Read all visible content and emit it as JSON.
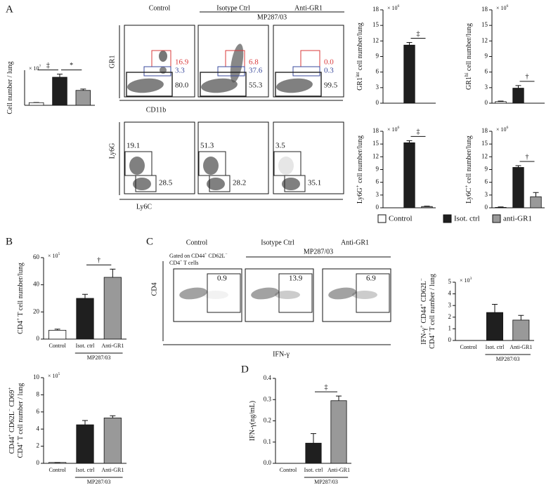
{
  "panel_labels": [
    "A",
    "B",
    "C",
    "D"
  ],
  "flow_a": {
    "columns": [
      "Control",
      "Isotype Ctrl",
      "Anti-GR1"
    ],
    "group": "MP287/03",
    "gr1": {
      "ylabel": "GR1",
      "xlabel": "CD11b",
      "gates": [
        [
          "16.9",
          "3.3",
          "80.0"
        ],
        [
          "6.8",
          "37.6",
          "55.3"
        ],
        [
          "0.0",
          "0.3",
          "99.5"
        ]
      ],
      "gate_colors": [
        "#d9383a",
        "#3a4a9c",
        "#222222"
      ]
    },
    "ly6": {
      "ylabel": "Ly6G",
      "xlabel": "Ly6C",
      "gates": [
        [
          "19.1",
          "28.5"
        ],
        [
          "51.3",
          "28.2"
        ],
        [
          "3.5",
          "35.1"
        ]
      ]
    }
  },
  "flow_c": {
    "columns": [
      "Control",
      "Isotype Ctrl",
      "Anti-GR1"
    ],
    "group": "MP287/03",
    "note": [
      [
        "Gated on CD44",
        "+",
        " CD62L",
        "−"
      ],
      [
        "CD4",
        "+",
        " T cells"
      ]
    ],
    "ylabel": "CD4",
    "xlabel": "IFN-γ",
    "gates": [
      "0.9",
      "13.9",
      "6.9"
    ]
  },
  "legend": [
    {
      "name": "Control",
      "color": "#ffffff"
    },
    {
      "name": "Isot. ctrl",
      "color": "#1f1f1f"
    },
    {
      "name": "anti-GR1",
      "color": "#999999"
    }
  ],
  "chart_data": [
    {
      "type": "bar",
      "ylabel": [
        [
          "Cell number / lung"
        ]
      ],
      "unit_label": [
        "× 10",
        "7"
      ],
      "categories": [
        null,
        null,
        null
      ],
      "values": [
        0.6,
        6.4,
        3.4
      ],
      "errors": [
        0.05,
        0.7,
        0.3
      ],
      "colors": [
        "#ffffff",
        "#1f1f1f",
        "#999999"
      ],
      "ylim": [
        0,
        8
      ],
      "annotations": [
        "‡",
        "*"
      ]
    },
    {
      "type": "bar",
      "ylabel": [
        [
          "GR1",
          "int",
          " cell number/lung"
        ]
      ],
      "unit_label": [
        "× 10",
        "6"
      ],
      "categories": [
        null,
        null,
        null
      ],
      "values": [
        0,
        11.2,
        0
      ],
      "errors": [
        0,
        0.5,
        0
      ],
      "colors": [
        "#ffffff",
        "#1f1f1f",
        "#999999"
      ],
      "ylim": [
        0,
        18
      ],
      "yticks": [
        0,
        3,
        6,
        9,
        12,
        15,
        18
      ],
      "annotations": [
        "‡"
      ]
    },
    {
      "type": "bar",
      "ylabel": [
        [
          "GR1",
          "hi",
          " cell number/lung"
        ]
      ],
      "unit_label": [
        "× 10",
        "6"
      ],
      "categories": [
        null,
        null,
        null
      ],
      "values": [
        0.3,
        2.9,
        0
      ],
      "errors": [
        0.1,
        0.5,
        0
      ],
      "colors": [
        "#ffffff",
        "#1f1f1f",
        "#999999"
      ],
      "ylim": [
        0,
        18
      ],
      "yticks": [
        0,
        3,
        6,
        9,
        12,
        15,
        18
      ],
      "annotations": [
        "†"
      ]
    },
    {
      "type": "bar",
      "ylabel": [
        [
          "Ly6G",
          "+",
          " cell number/lung"
        ]
      ],
      "unit_label": [
        "× 10",
        "6"
      ],
      "categories": [
        null,
        null,
        null
      ],
      "values": [
        0,
        15.3,
        0.3
      ],
      "errors": [
        0,
        0.5,
        0.1
      ],
      "colors": [
        "#ffffff",
        "#1f1f1f",
        "#999999"
      ],
      "ylim": [
        0,
        18
      ],
      "yticks": [
        0,
        3,
        6,
        9,
        12,
        15,
        18
      ],
      "annotations": [
        "‡"
      ]
    },
    {
      "type": "bar",
      "ylabel": [
        [
          "Ly6C",
          "+",
          " cell number/lung"
        ]
      ],
      "unit_label": [
        "× 10",
        "6"
      ],
      "categories": [
        null,
        null,
        null
      ],
      "values": [
        0.1,
        9.5,
        2.6
      ],
      "errors": [
        0.1,
        0.4,
        1.0
      ],
      "colors": [
        "#ffffff",
        "#1f1f1f",
        "#999999"
      ],
      "ylim": [
        0,
        18
      ],
      "yticks": [
        0,
        3,
        6,
        9,
        12,
        15,
        18
      ],
      "annotations": [
        "†"
      ]
    },
    {
      "type": "bar",
      "ylabel": [
        [
          "CD4",
          "+",
          " T cell number/lung"
        ]
      ],
      "unit_label": [
        "× 10",
        "5"
      ],
      "categories": [
        "Control",
        "Isot. ctrl",
        "Anti-GR1"
      ],
      "group": "MP287/03",
      "values": [
        6.5,
        30,
        45.5
      ],
      "errors": [
        0.8,
        3,
        6
      ],
      "colors": [
        "#ffffff",
        "#1f1f1f",
        "#999999"
      ],
      "ylim": [
        0,
        60
      ],
      "yticks": [
        0,
        20,
        40,
        60
      ],
      "annotations": [
        "†"
      ]
    },
    {
      "type": "bar",
      "ylabel": [
        [
          "CD44",
          "+",
          " CD62L",
          "−",
          " CD69",
          "+"
        ],
        [
          "CD4",
          "+",
          " T cell number / lung"
        ]
      ],
      "unit_label": [
        "× 10",
        "5"
      ],
      "categories": [
        "Control",
        "Isot. ctrl",
        "Anti-GR1"
      ],
      "group": "MP287/03",
      "values": [
        0.1,
        4.5,
        5.3
      ],
      "errors": [
        0,
        0.5,
        0.25
      ],
      "colors": [
        "#ffffff",
        "#1f1f1f",
        "#999999"
      ],
      "ylim": [
        0,
        10
      ],
      "yticks": [
        0,
        2,
        4,
        6,
        8,
        10
      ]
    },
    {
      "type": "bar",
      "ylabel": [
        [
          "IFN-γ",
          "+",
          " CD44",
          "+",
          " CD62L",
          "−"
        ],
        [
          "CD4",
          "+",
          " T cell number / lung"
        ]
      ],
      "unit_label": [
        "× 10",
        "3"
      ],
      "categories": [
        "Control",
        "Isot. ctrl",
        "Anti-GR1"
      ],
      "group": "MP287/03",
      "values": [
        0,
        2.4,
        1.75
      ],
      "errors": [
        0,
        0.7,
        0.4
      ],
      "colors": [
        "#ffffff",
        "#1f1f1f",
        "#999999"
      ],
      "ylim": [
        0,
        5
      ],
      "yticks": [
        0,
        1,
        2,
        3,
        4,
        5
      ]
    },
    {
      "type": "bar",
      "ylabel": [
        [
          "IFN-γ(ng/mL)"
        ]
      ],
      "categories": [
        "Control",
        "Isot. ctrl",
        "Anti-GR1"
      ],
      "group": "MP287/03",
      "values": [
        0,
        0.095,
        0.295
      ],
      "errors": [
        0,
        0.045,
        0.022
      ],
      "colors": [
        "#ffffff",
        "#1f1f1f",
        "#999999"
      ],
      "ylim": [
        0,
        0.4
      ],
      "yticks": [
        {
          "value": 0,
          "label": "0.0"
        },
        0.1,
        0.2,
        0.3,
        0.4
      ],
      "annotations": [
        "‡"
      ]
    }
  ]
}
